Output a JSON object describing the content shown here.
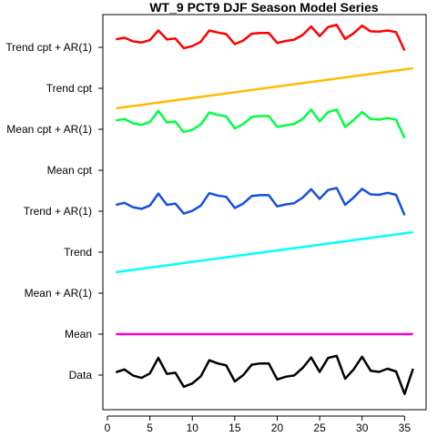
{
  "chart_data": {
    "type": "line",
    "title": "WT_9 PCT9 DJF Season Model Series",
    "xlabel": "",
    "ylabel": "",
    "xlim": [
      0,
      37
    ],
    "x_ticks": [
      0,
      5,
      10,
      15,
      20,
      25,
      30,
      35
    ],
    "grid": false,
    "legend": "none",
    "series_row_labels": [
      "Trend cpt + AR(1)",
      "Trend cpt",
      "Mean cpt + AR(1)",
      "Mean cpt",
      "Trend + AR(1)",
      "Trend",
      "Mean + AR(1)",
      "Mean",
      "Data"
    ],
    "series": [
      {
        "color": "#ff0000",
        "x": [
          1,
          2,
          3,
          4,
          5,
          6,
          7,
          8,
          9,
          10,
          11,
          12,
          13,
          14,
          15,
          16,
          17,
          18,
          19,
          20,
          21,
          22,
          23,
          24,
          25,
          26,
          27,
          28,
          29,
          30,
          31,
          32,
          33,
          34,
          35
        ],
        "values": [
          0.7,
          0.74,
          0.65,
          0.62,
          0.68,
          0.92,
          0.7,
          0.72,
          0.48,
          0.53,
          0.64,
          0.92,
          0.87,
          0.83,
          0.58,
          0.67,
          0.84,
          0.86,
          0.86,
          0.61,
          0.66,
          0.69,
          0.81,
          1.02,
          0.78,
          1.01,
          1.06,
          0.71,
          0.85,
          1.04,
          0.9,
          0.89,
          0.92,
          0.88,
          0.42
        ]
      },
      {
        "color": "#ffbb00",
        "x": [
          1,
          36
        ],
        "values": [
          0.0,
          1.0
        ]
      },
      {
        "color": "#00ff40",
        "x": [
          1,
          2,
          3,
          4,
          5,
          6,
          7,
          8,
          9,
          10,
          11,
          12,
          13,
          14,
          15,
          16,
          17,
          18,
          19,
          20,
          21,
          22,
          23,
          24,
          25,
          26,
          27,
          28,
          29,
          30,
          31,
          32,
          33,
          34,
          35
        ],
        "values": [
          0.72,
          0.76,
          0.65,
          0.61,
          0.68,
          0.96,
          0.67,
          0.69,
          0.43,
          0.49,
          0.62,
          0.92,
          0.86,
          0.82,
          0.52,
          0.63,
          0.81,
          0.83,
          0.83,
          0.56,
          0.6,
          0.63,
          0.76,
          0.99,
          0.7,
          0.93,
          0.99,
          0.56,
          0.73,
          0.93,
          0.76,
          0.74,
          0.78,
          0.74,
          0.28
        ]
      },
      {
        "color": "#ffffff",
        "x": [],
        "values": []
      },
      {
        "color": "#1450e0",
        "x": [
          1,
          2,
          3,
          4,
          5,
          6,
          7,
          8,
          9,
          10,
          11,
          12,
          13,
          14,
          15,
          16,
          17,
          18,
          19,
          20,
          21,
          22,
          23,
          24,
          25,
          26,
          27,
          28,
          29,
          30,
          31,
          32,
          33,
          34,
          35
        ],
        "values": [
          0.66,
          0.71,
          0.6,
          0.56,
          0.64,
          0.94,
          0.66,
          0.69,
          0.44,
          0.51,
          0.64,
          0.95,
          0.89,
          0.86,
          0.58,
          0.69,
          0.88,
          0.9,
          0.9,
          0.62,
          0.67,
          0.7,
          0.84,
          1.05,
          0.81,
          1.03,
          1.08,
          0.66,
          0.84,
          1.06,
          0.92,
          0.91,
          0.96,
          0.91,
          0.4
        ]
      },
      {
        "color": "#00ffff",
        "x": [
          1,
          36
        ],
        "values": [
          0.0,
          1.0
        ]
      },
      {
        "color": "#ffffff",
        "x": [],
        "values": []
      },
      {
        "color": "#ff00c8",
        "x": [
          1,
          36
        ],
        "values": [
          0.5,
          0.5
        ]
      },
      {
        "color": "#000000",
        "x": [
          1,
          2,
          3,
          4,
          5,
          6,
          7,
          8,
          9,
          10,
          11,
          12,
          13,
          14,
          15,
          16,
          17,
          18,
          19,
          20,
          21,
          22,
          23,
          24,
          25,
          26,
          27,
          28,
          29,
          30,
          31,
          32,
          33,
          34,
          35,
          36
        ],
        "values": [
          0.57,
          0.64,
          0.49,
          0.43,
          0.54,
          0.93,
          0.53,
          0.56,
          0.21,
          0.29,
          0.47,
          0.87,
          0.79,
          0.74,
          0.34,
          0.5,
          0.76,
          0.79,
          0.79,
          0.39,
          0.46,
          0.49,
          0.68,
          0.94,
          0.58,
          0.93,
          0.98,
          0.41,
          0.64,
          0.96,
          0.61,
          0.58,
          0.66,
          0.59,
          0.03,
          0.66
        ]
      }
    ]
  }
}
